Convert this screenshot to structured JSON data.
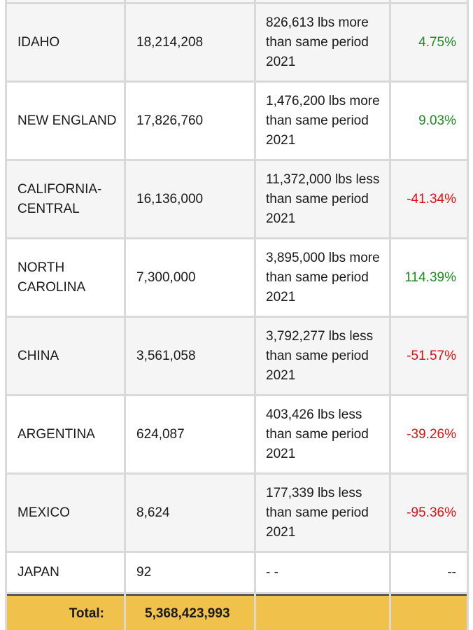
{
  "table": {
    "rows": [
      {
        "region": "IDAHO",
        "pounds": "18,214,208",
        "comparison": "826,613 lbs more than same period 2021",
        "change": "4.75%",
        "trend": "pos"
      },
      {
        "region": "NEW ENGLAND",
        "pounds": "17,826,760",
        "comparison": "1,476,200 lbs more than same period 2021",
        "change": "9.03%",
        "trend": "pos"
      },
      {
        "region": "CALIFORNIA-CENTRAL",
        "pounds": "16,136,000",
        "comparison": "11,372,000 lbs less than same period 2021",
        "change": "-41.34%",
        "trend": "neg"
      },
      {
        "region": "NORTH CAROLINA",
        "pounds": "7,300,000",
        "comparison": "3,895,000 lbs more than same period 2021",
        "change": "114.39%",
        "trend": "pos"
      },
      {
        "region": "CHINA",
        "pounds": "3,561,058",
        "comparison": "3,792,277 lbs less than same period 2021",
        "change": "-51.57%",
        "trend": "neg"
      },
      {
        "region": "ARGENTINA",
        "pounds": "624,087",
        "comparison": "403,426 lbs less than same period 2021",
        "change": "-39.26%",
        "trend": "neg"
      },
      {
        "region": "MEXICO",
        "pounds": "8,624",
        "comparison": "177,339 lbs less than same period 2021",
        "change": "-95.36%",
        "trend": "neg"
      },
      {
        "region": "JAPAN",
        "pounds": "92",
        "comparison": "- -",
        "change": "--",
        "trend": "neutral"
      }
    ],
    "total": {
      "label": "Total:",
      "pounds": "5,368,423,993"
    },
    "colors": {
      "positive": "#1f8a1f",
      "negative": "#e01010",
      "total_bg": "#f0c24c"
    }
  }
}
